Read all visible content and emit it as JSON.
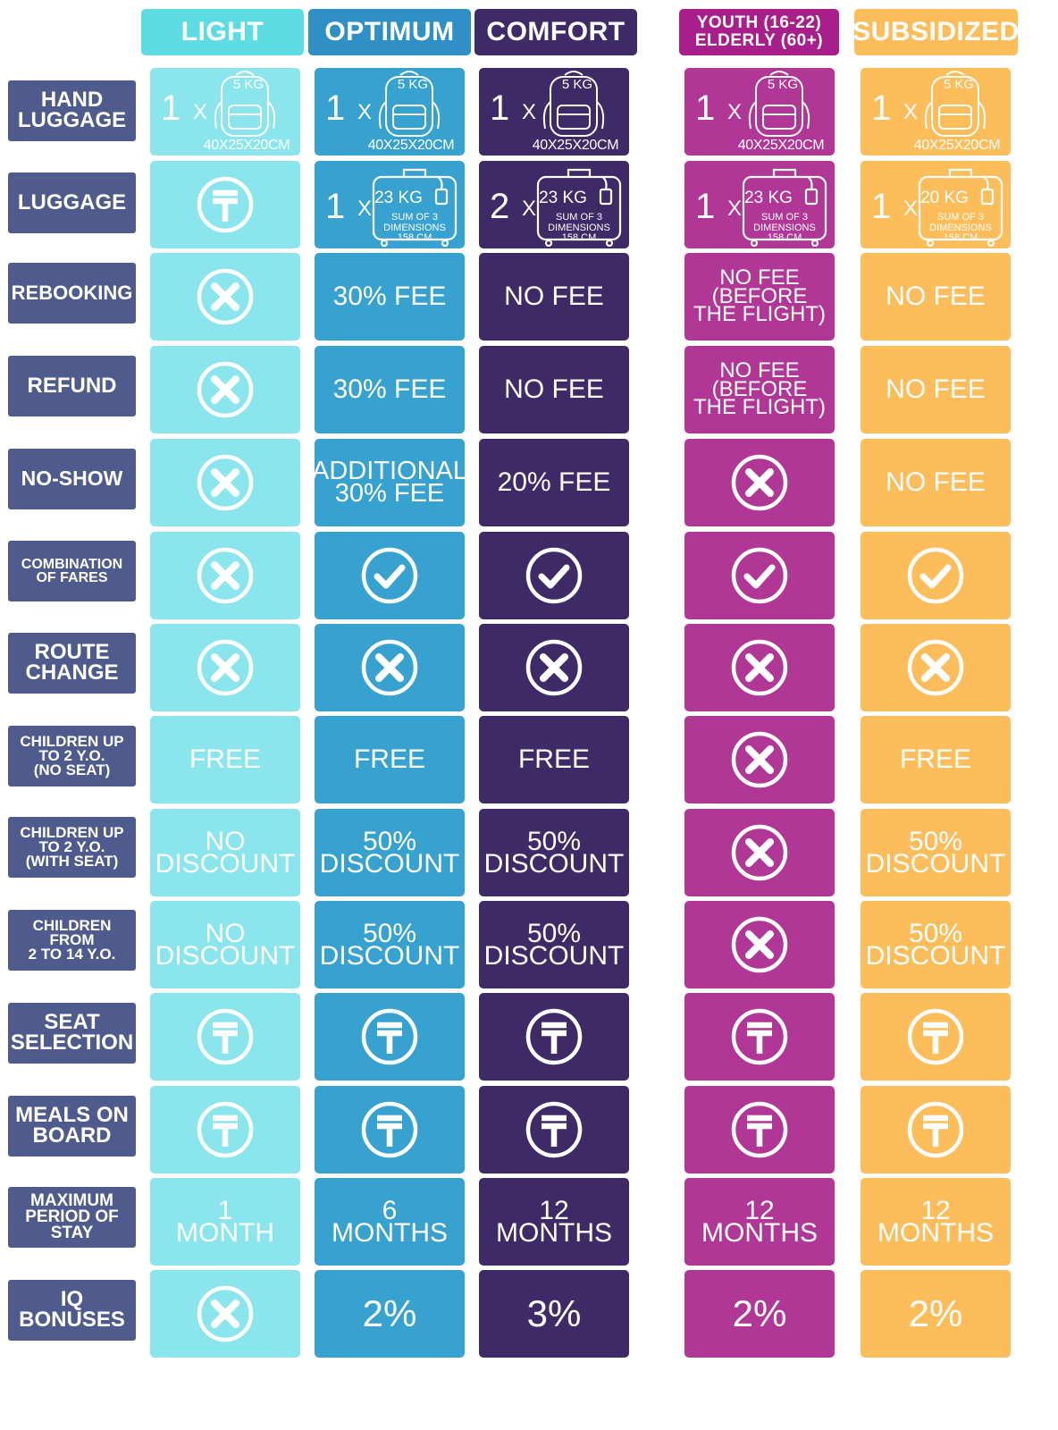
{
  "colors": {
    "light": "#8ae6ec",
    "light_header": "#5ddce3",
    "optimum": "#37a2d0",
    "optimum_header": "#2e90c4",
    "comfort": "#3d2a66",
    "comfort_header": "#3d2a66",
    "youth": "#b13796",
    "youth_header": "#a81e8a",
    "subsidized": "#fcbd5a",
    "subsidized_header": "#fcbd5a",
    "row_label": "#4e5b8c"
  },
  "headers": {
    "light": "LIGHT",
    "optimum": "OPTIMUM",
    "comfort": "COMFORT",
    "youth_line1": "YOUTH (16-22)",
    "youth_line2": "ELDERLY (60+)",
    "subsidized": "SUBSIDIZED"
  },
  "rows": {
    "hand_luggage": [
      "HAND",
      "LUGGAGE"
    ],
    "luggage": [
      "LUGGAGE"
    ],
    "rebooking": [
      "REBOOKING"
    ],
    "refund": [
      "REFUND"
    ],
    "no_show": [
      "NO-SHOW"
    ],
    "combination": [
      "COMBINATION",
      "OF FARES"
    ],
    "route_change": [
      "ROUTE",
      "CHANGE"
    ],
    "children_no_seat": [
      "CHILDREN UP",
      "TO 2 Y.O.",
      "(NO SEAT)"
    ],
    "children_with_seat": [
      "CHILDREN UP",
      "TO 2 Y.O.",
      "(WITH SEAT)"
    ],
    "children_2_14": [
      "CHILDREN",
      "FROM",
      "2 TO 14 Y.O."
    ],
    "seat_selection": [
      "SEAT",
      "SELECTION"
    ],
    "meals": [
      "MEALS ON",
      "BOARD"
    ],
    "max_stay": [
      "MAXIMUM",
      "PERIOD OF",
      "STAY"
    ],
    "iq_bonuses": [
      "IQ",
      "BONUSES"
    ]
  },
  "hand_luggage": {
    "qty": "1",
    "x": "x",
    "kg": "5 KG",
    "dimensions": "40X25X20CM"
  },
  "luggage": {
    "optimum": {
      "qty": "1",
      "kg": "23 KG"
    },
    "comfort": {
      "qty": "2",
      "kg": "23 KG"
    },
    "youth": {
      "qty": "1",
      "kg": "23 KG"
    },
    "subsidized": {
      "qty": "1",
      "kg": "20 KG"
    },
    "x": "x",
    "sum_line1": "SUM OF 3",
    "sum_line2": "DIMENSIONS",
    "sum_line3": "158 CM"
  },
  "values": {
    "rebooking": {
      "optimum": "30% FEE",
      "comfort": "NO FEE",
      "youth": [
        "NO FEE",
        "(BEFORE",
        "THE FLIGHT)"
      ],
      "subsidized": "NO FEE"
    },
    "refund": {
      "optimum": "30% FEE",
      "comfort": "NO FEE",
      "youth": [
        "NO FEE",
        "(BEFORE",
        "THE FLIGHT)"
      ],
      "subsidized": "NO FEE"
    },
    "no_show": {
      "optimum": [
        "ADDITIONAL",
        "30% FEE"
      ],
      "comfort": "20% FEE",
      "subsidized": "NO FEE"
    },
    "children_no_seat": {
      "light": "FREE",
      "optimum": "FREE",
      "comfort": "FREE",
      "subsidized": "FREE"
    },
    "children_with_seat": {
      "light": [
        "NO",
        "DISCOUNT"
      ],
      "optimum": [
        "50%",
        "DISCOUNT"
      ],
      "comfort": [
        "50%",
        "DISCOUNT"
      ],
      "subsidized": [
        "50%",
        "DISCOUNT"
      ]
    },
    "children_2_14": {
      "light": [
        "NO",
        "DISCOUNT"
      ],
      "optimum": [
        "50%",
        "DISCOUNT"
      ],
      "comfort": [
        "50%",
        "DISCOUNT"
      ],
      "subsidized": [
        "50%",
        "DISCOUNT"
      ]
    },
    "max_stay": {
      "light": [
        "1",
        "MONTH"
      ],
      "optimum": [
        "6",
        "MONTHS"
      ],
      "comfort": [
        "12",
        "MONTHS"
      ],
      "youth": [
        "12",
        "MONTHS"
      ],
      "subsidized": [
        "12",
        "MONTHS"
      ]
    },
    "iq_bonuses": {
      "optimum": "2%",
      "comfort": "3%",
      "youth": "2%",
      "subsidized": "2%"
    }
  },
  "icons": {
    "cross": "x-circle-icon",
    "check": "check-circle-icon",
    "paid": "tenge-circle-icon",
    "backpack": "backpack-icon",
    "suitcase": "suitcase-icon"
  }
}
